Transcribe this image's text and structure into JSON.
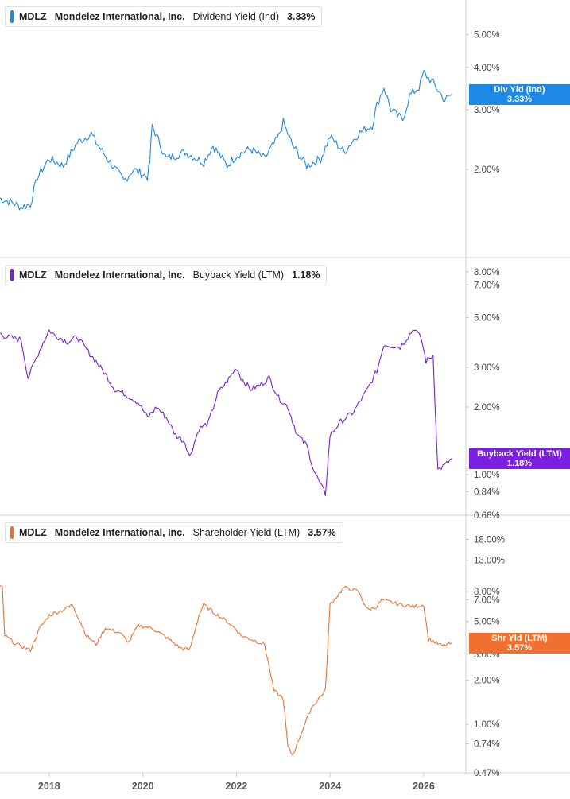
{
  "chart_data": [
    {
      "type": "line",
      "ticker": "MDLZ",
      "company": "Mondelez International, Inc.",
      "metric": "Dividend Yield (Ind)",
      "current_value": "3.33%",
      "badge_label": "Div Yld (Ind)",
      "color": "#1e88e5",
      "y_scale": "log",
      "ylim": [
        1.25,
        5.8
      ],
      "yticks": [
        {
          "v": 5.0,
          "label": "5.00%"
        },
        {
          "v": 4.0,
          "label": "4.00%"
        },
        {
          "v": 3.0,
          "label": "3.00%"
        },
        {
          "v": 2.0,
          "label": "2.00%"
        }
      ],
      "series": [
        {
          "x": [
            2016.9,
            2017.2,
            2017.4,
            2017.6,
            2017.75,
            2018.0,
            2018.3,
            2018.6,
            2018.9,
            2019.0,
            2019.3,
            2019.6,
            2019.8,
            2020.1,
            2020.15,
            2020.2,
            2020.5,
            2020.9,
            2021.3,
            2021.5,
            2021.8,
            2022.0,
            2022.3,
            2022.6,
            2022.9,
            2023.0,
            2023.2,
            2023.5,
            2023.8,
            2024.0,
            2024.3,
            2024.6,
            2024.9,
            2025.0,
            2025.15,
            2025.3,
            2025.55,
            2025.7,
            2025.9,
            2026.0,
            2026.2,
            2026.45,
            2026.6
          ],
          "y": [
            1.65,
            1.6,
            1.55,
            1.58,
            1.9,
            2.15,
            2.05,
            2.4,
            2.55,
            2.4,
            2.1,
            1.85,
            2.0,
            1.9,
            2.1,
            2.7,
            2.15,
            2.25,
            2.1,
            2.35,
            2.05,
            2.2,
            2.3,
            2.15,
            2.5,
            2.75,
            2.35,
            2.05,
            2.15,
            2.5,
            2.25,
            2.55,
            2.7,
            3.1,
            3.5,
            3.0,
            2.8,
            3.3,
            3.5,
            3.85,
            3.6,
            3.2,
            3.33
          ]
        }
      ]
    },
    {
      "type": "line",
      "ticker": "MDLZ",
      "company": "Mondelez International, Inc.",
      "metric": "Buyback Yield (LTM)",
      "current_value": "1.18%",
      "badge_label": "Buyback Yield (LTM)",
      "color": "#7b1fe0",
      "y_scale": "log",
      "ylim": [
        0.66,
        8.6
      ],
      "yticks": [
        {
          "v": 8.0,
          "label": "8.00%"
        },
        {
          "v": 7.0,
          "label": "7.00%"
        },
        {
          "v": 5.0,
          "label": "5.00%"
        },
        {
          "v": 3.0,
          "label": "3.00%"
        },
        {
          "v": 2.0,
          "label": "2.00%"
        },
        {
          "v": 1.0,
          "label": "1.00%"
        },
        {
          "v": 0.84,
          "label": "0.84%"
        },
        {
          "v": 0.66,
          "label": "0.66%"
        }
      ],
      "series": [
        {
          "x": [
            2016.9,
            2017.1,
            2017.4,
            2017.55,
            2017.8,
            2018.0,
            2018.1,
            2018.4,
            2018.6,
            2018.8,
            2019.0,
            2019.2,
            2019.4,
            2019.6,
            2019.9,
            2020.1,
            2020.3,
            2020.5,
            2020.7,
            2020.9,
            2021.0,
            2021.2,
            2021.4,
            2021.6,
            2021.8,
            2022.0,
            2022.1,
            2022.3,
            2022.5,
            2022.7,
            2022.9,
            2023.1,
            2023.3,
            2023.5,
            2023.65,
            2023.8,
            2023.9,
            2024.0,
            2024.2,
            2024.5,
            2024.8,
            2025.0,
            2025.15,
            2025.5,
            2025.8,
            2025.95,
            2026.05,
            2026.2,
            2026.3,
            2026.45,
            2026.6
          ],
          "y": [
            4.3,
            4.1,
            4.0,
            2.7,
            3.6,
            4.4,
            4.2,
            3.9,
            4.1,
            3.6,
            3.2,
            2.8,
            2.4,
            2.3,
            2.1,
            1.8,
            2.0,
            1.8,
            1.5,
            1.4,
            1.2,
            1.6,
            1.7,
            2.3,
            2.6,
            3.0,
            2.7,
            2.4,
            2.5,
            2.7,
            2.2,
            2.0,
            1.5,
            1.35,
            1.05,
            0.9,
            0.82,
            1.5,
            1.7,
            1.9,
            2.4,
            2.9,
            3.8,
            3.7,
            4.5,
            4.0,
            3.2,
            3.4,
            1.05,
            1.1,
            1.18
          ]
        }
      ]
    },
    {
      "type": "line",
      "ticker": "MDLZ",
      "company": "Mondelez International, Inc.",
      "metric": "Shareholder Yield (LTM)",
      "current_value": "3.57%",
      "badge_label": "Shr Yld (LTM)",
      "color": "#f07030",
      "y_scale": "log",
      "ylim": [
        0.47,
        20.0
      ],
      "yticks": [
        {
          "v": 18.0,
          "label": "18.00%"
        },
        {
          "v": 13.0,
          "label": "13.00%"
        },
        {
          "v": 8.0,
          "label": "8.00%"
        },
        {
          "v": 7.0,
          "label": "7.00%"
        },
        {
          "v": 5.0,
          "label": "5.00%"
        },
        {
          "v": 3.0,
          "label": "3.00%"
        },
        {
          "v": 2.0,
          "label": "2.00%"
        },
        {
          "v": 1.0,
          "label": "1.00%"
        },
        {
          "v": 0.74,
          "label": "0.74%"
        },
        {
          "v": 0.47,
          "label": "0.47%"
        }
      ],
      "series": [
        {
          "x": [
            2016.9,
            2017.0,
            2017.05,
            2017.3,
            2017.6,
            2017.8,
            2018.0,
            2018.3,
            2018.5,
            2018.8,
            2019.0,
            2019.2,
            2019.5,
            2019.7,
            2019.9,
            2020.2,
            2020.5,
            2020.8,
            2021.0,
            2021.2,
            2021.3,
            2021.5,
            2021.8,
            2022.0,
            2022.1,
            2022.3,
            2022.6,
            2022.8,
            2023.0,
            2023.1,
            2023.2,
            2023.4,
            2023.6,
            2023.9,
            2024.0,
            2024.3,
            2024.6,
            2024.8,
            2025.0,
            2025.1,
            2025.5,
            2025.8,
            2026.0,
            2026.1,
            2026.4,
            2026.6
          ],
          "y": [
            8.7,
            8.5,
            4.0,
            3.5,
            3.2,
            4.5,
            5.5,
            6.0,
            6.5,
            4.0,
            3.5,
            4.5,
            4.2,
            3.6,
            4.7,
            4.5,
            3.9,
            3.3,
            3.2,
            5.5,
            6.5,
            5.8,
            5.0,
            4.4,
            4.0,
            3.8,
            3.5,
            1.7,
            1.5,
            0.7,
            0.62,
            0.9,
            1.3,
            1.7,
            6.5,
            8.5,
            8.0,
            6.0,
            6.3,
            7.0,
            6.5,
            6.3,
            6.5,
            3.8,
            3.4,
            3.57
          ]
        }
      ]
    }
  ],
  "x_axis": {
    "ticks": [
      {
        "v": 2018,
        "label": "2018"
      },
      {
        "v": 2020,
        "label": "2020"
      },
      {
        "v": 2022,
        "label": "2022"
      },
      {
        "v": 2024,
        "label": "2024"
      },
      {
        "v": 2026,
        "label": "2026"
      }
    ]
  }
}
